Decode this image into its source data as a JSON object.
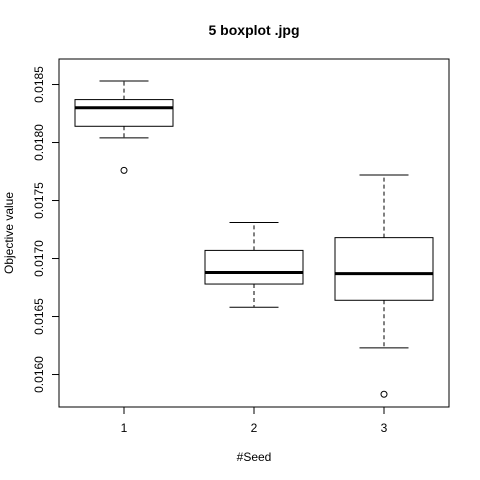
{
  "chart_data": {
    "type": "boxplot",
    "title": "5 boxplot .jpg",
    "xlabel": "#Seed",
    "ylabel": "Objective value",
    "categories": [
      "1",
      "2",
      "3"
    ],
    "ylim": [
      0.01572,
      0.01872
    ],
    "y_ticks": [
      "0.0160",
      "0.0165",
      "0.0170",
      "0.0175",
      "0.0180",
      "0.0185"
    ],
    "boxes": [
      {
        "category": "1",
        "whisker_low": 0.01804,
        "q1": 0.01814,
        "median": 0.0183,
        "q3": 0.01837,
        "whisker_high": 0.01853,
        "outliers": [
          0.01776
        ]
      },
      {
        "category": "2",
        "whisker_low": 0.01658,
        "q1": 0.01678,
        "median": 0.01688,
        "q3": 0.01707,
        "whisker_high": 0.01731,
        "outliers": []
      },
      {
        "category": "3",
        "whisker_low": 0.01623,
        "q1": 0.01664,
        "median": 0.01687,
        "q3": 0.01718,
        "whisker_high": 0.01772,
        "outliers": [
          0.01583
        ]
      }
    ],
    "grid": false,
    "colors": {
      "box_fill": "#ffffff",
      "stroke": "#000000"
    }
  }
}
